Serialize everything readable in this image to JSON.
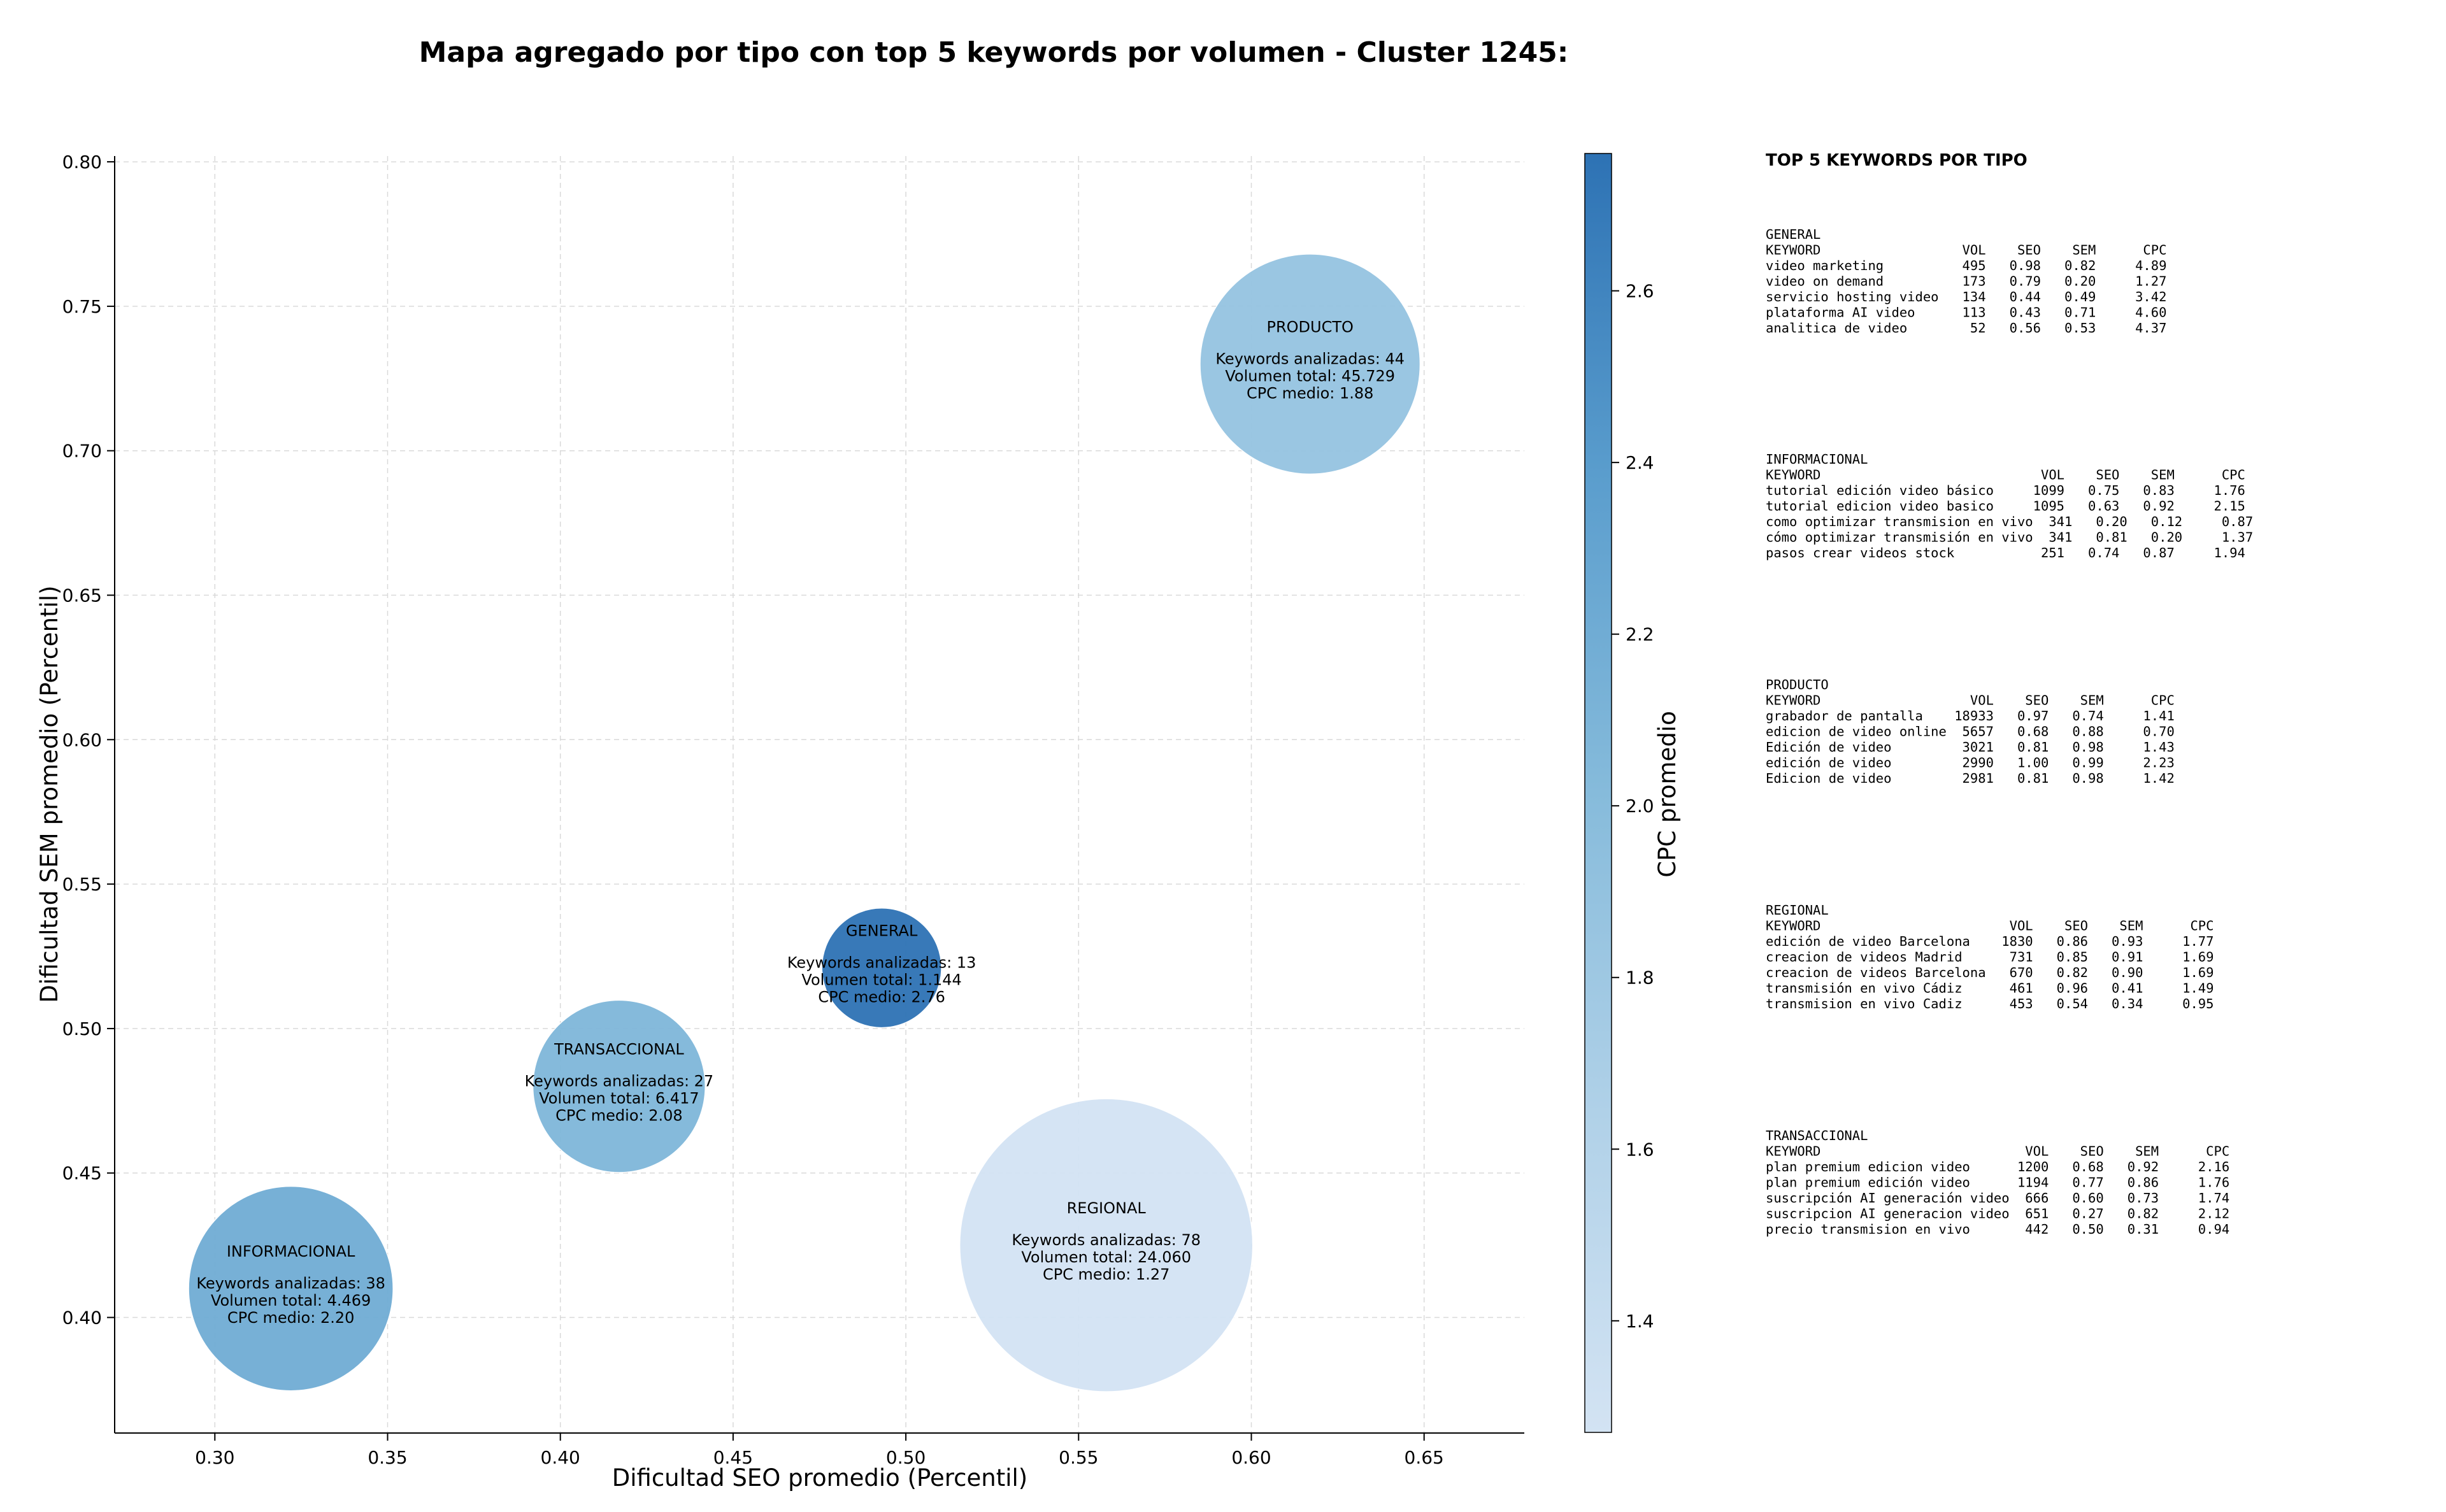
{
  "chart_data": {
    "type": "bubble",
    "title": "Mapa agregado por tipo con top 5 keywords por volumen - Cluster 1245:",
    "xlabel": "Dificultad SEO promedio (Percentil)",
    "ylabel": "Dificultad SEM promedio (Percentil)",
    "xlim": [
      0.271,
      0.679
    ],
    "ylim": [
      0.36,
      0.802
    ],
    "x_ticks": [
      "0.30",
      "0.35",
      "0.40",
      "0.45",
      "0.50",
      "0.55",
      "0.60",
      "0.65"
    ],
    "y_ticks": [
      "0.40",
      "0.45",
      "0.50",
      "0.55",
      "0.60",
      "0.65",
      "0.70",
      "0.75",
      "0.80"
    ],
    "grid": true,
    "colorbar": {
      "label": "CPC promedio",
      "range": [
        1.27,
        2.76
      ],
      "ticks": [
        "1.4",
        "1.6",
        "1.8",
        "2.0",
        "2.2",
        "2.4",
        "2.6"
      ],
      "colormap": "Blues"
    },
    "bubbles": [
      {
        "name": "PRODUCTO",
        "x": 0.617,
        "y": 0.73,
        "keywords_label": "Keywords analizadas: 44",
        "volume_label": "Volumen total: 45.729",
        "cpc_label": "CPC medio: 1.88",
        "cpc": 1.88,
        "keywords": 44
      },
      {
        "name": "GENERAL",
        "x": 0.493,
        "y": 0.521,
        "keywords_label": "Keywords analizadas: 13",
        "volume_label": "Volumen total: 1.144",
        "cpc_label": "CPC medio: 2.76",
        "cpc": 2.76,
        "keywords": 13
      },
      {
        "name": "TRANSACCIONAL",
        "x": 0.417,
        "y": 0.48,
        "keywords_label": "Keywords analizadas: 27",
        "volume_label": "Volumen total: 6.417",
        "cpc_label": "CPC medio: 2.08",
        "cpc": 2.08,
        "keywords": 27
      },
      {
        "name": "REGIONAL",
        "x": 0.558,
        "y": 0.425,
        "keywords_label": "Keywords analizadas: 78",
        "volume_label": "Volumen total: 24.060",
        "cpc_label": "CPC medio: 1.27",
        "cpc": 1.27,
        "keywords": 78
      },
      {
        "name": "INFORMACIONAL",
        "x": 0.322,
        "y": 0.41,
        "keywords_label": "Keywords analizadas: 38",
        "volume_label": "Volumen total: 4.469",
        "cpc_label": "CPC medio: 2.20",
        "cpc": 2.2,
        "keywords": 38
      }
    ]
  },
  "panel": {
    "title": "TOP 5 KEYWORDS POR TIPO",
    "sections": [
      {
        "name": "GENERAL",
        "header": "KEYWORD                  VOL    SEO    SEM      CPC",
        "rows": [
          "video marketing          495   0.98   0.82     4.89",
          "video on demand          173   0.79   0.20     1.27",
          "servicio hosting video   134   0.44   0.49     3.42",
          "plataforma AI video      113   0.43   0.71     4.60",
          "analitica de video        52   0.56   0.53     4.37"
        ]
      },
      {
        "name": "INFORMACIONAL",
        "header": "KEYWORD                            VOL    SEO    SEM      CPC",
        "rows": [
          "tutorial edición video básico     1099   0.75   0.83     1.76",
          "tutorial edicion video basico     1095   0.63   0.92     2.15",
          "como optimizar transmision en vivo  341   0.20   0.12     0.87",
          "cómo optimizar transmisión en vivo  341   0.81   0.20     1.37",
          "pasos crear videos stock           251   0.74   0.87     1.94"
        ]
      },
      {
        "name": "PRODUCTO",
        "header": "KEYWORD                   VOL    SEO    SEM      CPC",
        "rows": [
          "grabador de pantalla    18933   0.97   0.74     1.41",
          "edicion de video online  5657   0.68   0.88     0.70",
          "Edición de video         3021   0.81   0.98     1.43",
          "edición de video         2990   1.00   0.99     2.23",
          "Edicion de video         2981   0.81   0.98     1.42"
        ]
      },
      {
        "name": "REGIONAL",
        "header": "KEYWORD                        VOL    SEO    SEM      CPC",
        "rows": [
          "edición de video Barcelona    1830   0.86   0.93     1.77",
          "creacion de videos Madrid      731   0.85   0.91     1.69",
          "creacion de videos Barcelona   670   0.82   0.90     1.69",
          "transmisión en vivo Cádiz      461   0.96   0.41     1.49",
          "transmision en vivo Cadiz      453   0.54   0.34     0.95"
        ]
      },
      {
        "name": "TRANSACCIONAL",
        "header": "KEYWORD                          VOL    SEO    SEM      CPC",
        "rows": [
          "plan premium edicion video      1200   0.68   0.92     2.16",
          "plan premium edición video      1194   0.77   0.86     1.76",
          "suscripción AI generación video  666   0.60   0.73     1.74",
          "suscripcion AI generacion video  651   0.27   0.82     2.12",
          "precio transmision en vivo       442   0.50   0.31     0.94"
        ]
      }
    ]
  }
}
